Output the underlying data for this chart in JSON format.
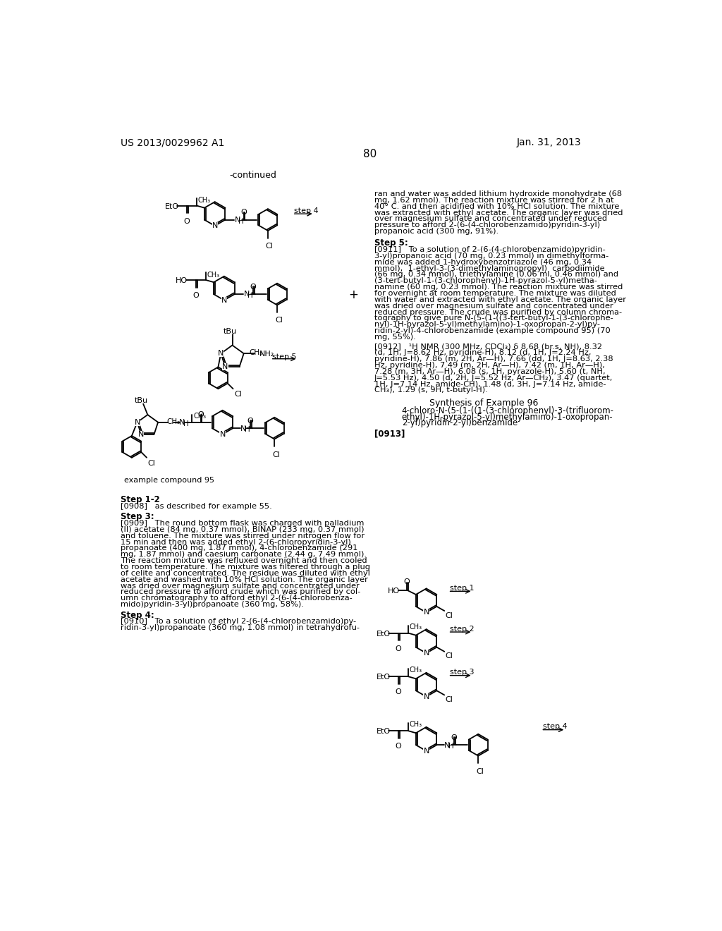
{
  "page_number": "80",
  "patent_number": "US 2013/0029962 A1",
  "date": "Jan. 31, 2013",
  "background_color": "#ffffff",
  "text_color": "#000000",
  "continued_label": "-continued",
  "right_column_paragraphs": [
    "ran and water was added lithium hydroxide monohydrate (68\nmg, 1.62 mmol). The reaction mixture was stirred for 2 h at\n40° C. and then acidified with 10% HCl solution. The mixture\nwas extracted with ethyl acetate. The organic layer was dried\nover magnesium sulfate and concentrated under reduced\npressure to afford 2-(6-(4-chlorobenzamido)pyridin-3-yl)\npropanoic acid (300 mg, 91%).",
    "Step 5:",
    "[0911]   To a solution of 2-(6-(4-chlorobenzamido)pyridin-\n3-yl)propanoic acid (70 mg, 0.23 mmol) in dimethylforma-\nmide was added 1-hydroxybenzotriazole (46 mg, 0.34\nmmol),  1-ethyl-3-(3-dimethylaminopropyl)  carbodiimide\n(66 mg, 0.34 mmol), triethylamine (0.06 ml, 0.46 mmol) and\n(3-tert-butyl-1-(3-chlorophenyl)-1H-pyrazol-5-yl)metha-\nnamine (60 mg, 0.23 mmol). The reaction mixture was stirred\nfor overnight at room temperature. The mixture was diluted\nwith water and extracted with ethyl acetate. The organic layer\nwas dried over magnesium sulfate and concentrated under\nreduced pressure. The crude was purified by column chroma-\ntography to give pure N-(5-(1-((3-tert-butyl-1-(3-chlorophe-\nnyl)-1H-pyrazol-5-yl)methylamino)-1-oxopropan-2-yl)py-\nridin-2-yl)-4-chlorobenzamide (example compound 95) (70\nmg, 55%).",
    "[0912]   ¹H NMR (300 MHz, CDCl₃) δ 8.68 (br.s, NH), 8.32\n(d, 1H, J=8.62 Hz, pyridine-H), 8.12 (d, 1H, J=2.24 Hz,\npyridine-H), 7.86 (m, 2H, Ar—H), 7.66 (dd, 1H, J=8.63, 2.38\nHz, pyridine-H), 7.49 (m, 2H, Ar—H), 7.42 (m, 1H, Ar—H),\n7.28 (m, 3H, Ar—H), 6.08 (s, 1H, pyrazole-H), 5.60 (t, NH,\nJ=5.53 Hz), 4.50 (d, 2H, J=5.52 Hz, Ar—CH₂), 3.47 (quartet,\n1H, J=7.14 Hz, amide-CH), 1.48 (d, 3H, J=7.14 Hz, amide-\nCH₃), 1.29 (s, 9H, t-butyl-H).",
    "Synthesis of Example 96",
    "4-chloro-N-(5-(1-((1-(3-chlorophenyl)-3-(trifluorom-\nethyl)-1H-pyrazol-5-yl)methylamino)-1-oxopropan-\n2-yl)pyridin-2-yl)benzamide",
    "[0913]"
  ],
  "bottom_section_left": [
    "Step 1-2",
    "[0908]   as described for example 55.",
    "Step 3:",
    "[0909]   The round bottom flask was charged with palladium\n(II) acetate (84 mg, 0.37 mmol), BINAP (233 mg, 0.37 mmol)\nand toluene. The mixture was stirred under nitrogen flow for\n15 min and then was added ethyl 2-(6-chloropyridin-3-yl)\npropanoate (400 mg, 1.87 mmol), 4-chlorobenzamide (291\nmg, 1.87 mmol) and caesium carbonate (2.44 g, 7.49 mmol).\nThe reaction mixture was refluxed overnight and then cooled\nto room temperature. The mixture was filtered through a plug\nof celite and concentrated. The residue was diluted with ethyl\nacetate and washed with 10% HCl solution. The organic layer\nwas dried over magnesium sulfate and concentrated under\nreduced pressure to afford crude which was purified by col-\numn chromatography to afford ethyl 2-(6-(4-chlorobenza-\nmido)pyridin-3-yl)propanoate (360 mg, 58%).",
    "Step 4:",
    "[0910]   To a solution of ethyl 2-(6-(4-chlorobenzamido)py-\nridin-3-yl)propanoate (360 mg, 1.08 mmol) in tetrahydrofu-"
  ]
}
